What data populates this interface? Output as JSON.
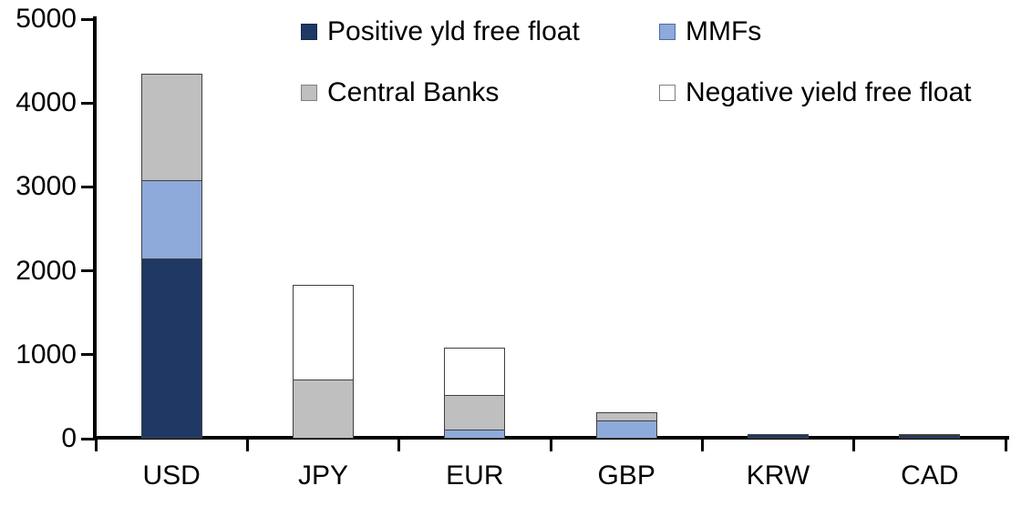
{
  "chart_data": {
    "type": "bar",
    "stacked": true,
    "title": "",
    "xlabel": "",
    "ylabel": "",
    "grid": false,
    "legend_position": "top",
    "ylim": [
      0,
      5000
    ],
    "y_ticks": [
      "0",
      "1000",
      "2000",
      "3000",
      "4000",
      "5000"
    ],
    "categories": [
      "USD",
      "JPY",
      "EUR",
      "GBP",
      "KRW",
      "CAD"
    ],
    "series": [
      {
        "name": "Positive yld free float",
        "color": "#1F3864",
        "swatch_border": "#17294A",
        "values": [
          2150,
          0,
          0,
          0,
          50,
          40
        ]
      },
      {
        "name": "MMFs",
        "color": "#8EAADB",
        "swatch_border": "#4A6DA7",
        "values": [
          940,
          0,
          110,
          220,
          0,
          0
        ]
      },
      {
        "name": "Central Banks",
        "color": "#BFBFBF",
        "swatch_border": "#7F7F7F",
        "values": [
          1280,
          700,
          425,
          110,
          0,
          30
        ]
      },
      {
        "name": "Negative yield free float",
        "color": "#FFFFFF",
        "swatch_border": "#7F7F7F",
        "values": [
          0,
          1140,
          575,
          0,
          0,
          0
        ]
      }
    ],
    "totals": {
      "USD": 4370,
      "JPY": 1840,
      "EUR": 1110,
      "GBP": 330,
      "KRW": 50,
      "CAD": 70
    }
  },
  "colors": {
    "axis": "#000000",
    "segment_border": "#404040",
    "text": "#000000",
    "background": "#FFFFFF"
  }
}
